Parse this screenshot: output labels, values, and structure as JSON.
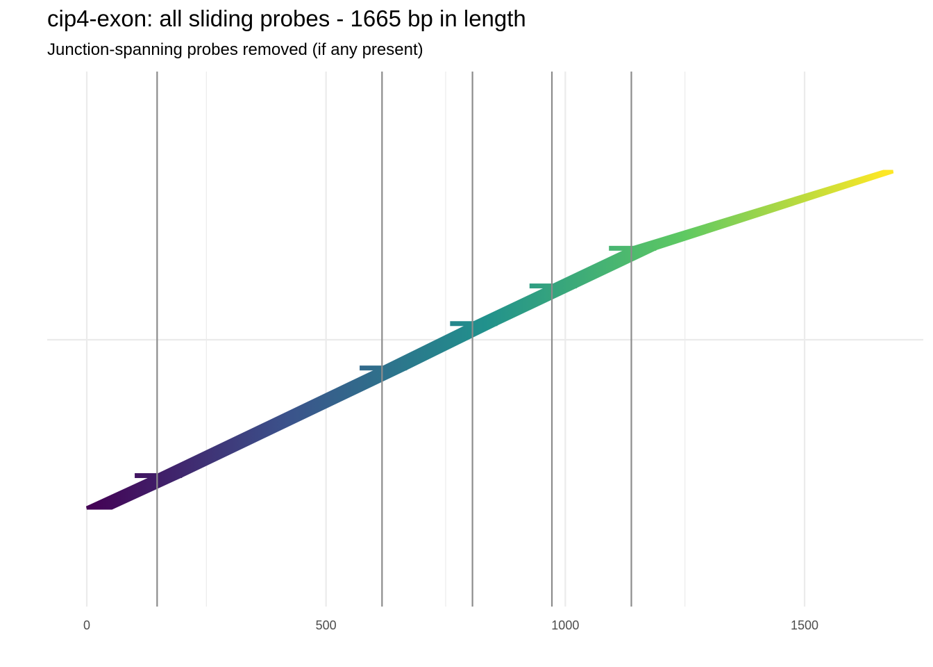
{
  "chart_data": {
    "type": "line",
    "title": "cip4-exon: all sliding probes - 1665 bp in length",
    "subtitle": "Junction-spanning probes removed (if any present)",
    "xlabel": "",
    "ylabel": "",
    "xlim": [
      0,
      1665
    ],
    "x_ticks": [
      {
        "value": 0,
        "label": "0"
      },
      {
        "value": 500,
        "label": "500"
      },
      {
        "value": 1000,
        "label": "1000"
      },
      {
        "value": 1500,
        "label": "1500"
      }
    ],
    "x_minor_gridlines": [
      250,
      750,
      1250
    ],
    "y_gridline": "middle",
    "junctions": [
      147,
      617,
      806,
      972,
      1138
    ],
    "probe_length": 52,
    "color_scale": "viridis",
    "colors": {
      "gridline": "#ebebeb",
      "junction_line": "#8c8c8c",
      "viridis": [
        "#440154",
        "#3b528b",
        "#21918c",
        "#5ec962",
        "#fde725"
      ]
    },
    "segments": [
      {
        "start": 0,
        "end": 147,
        "y_start": 0.0,
        "y_end": 0.096
      },
      {
        "start": 147,
        "end": 617,
        "y_start": 0.096,
        "y_end": 0.416
      },
      {
        "start": 617,
        "end": 806,
        "y_start": 0.416,
        "y_end": 0.548
      },
      {
        "start": 806,
        "end": 972,
        "y_start": 0.548,
        "y_end": 0.66
      },
      {
        "start": 972,
        "end": 1138,
        "y_start": 0.66,
        "y_end": 0.772
      },
      {
        "start": 1138,
        "end": 1665,
        "y_start": 0.772,
        "y_end": 1.0
      }
    ]
  }
}
